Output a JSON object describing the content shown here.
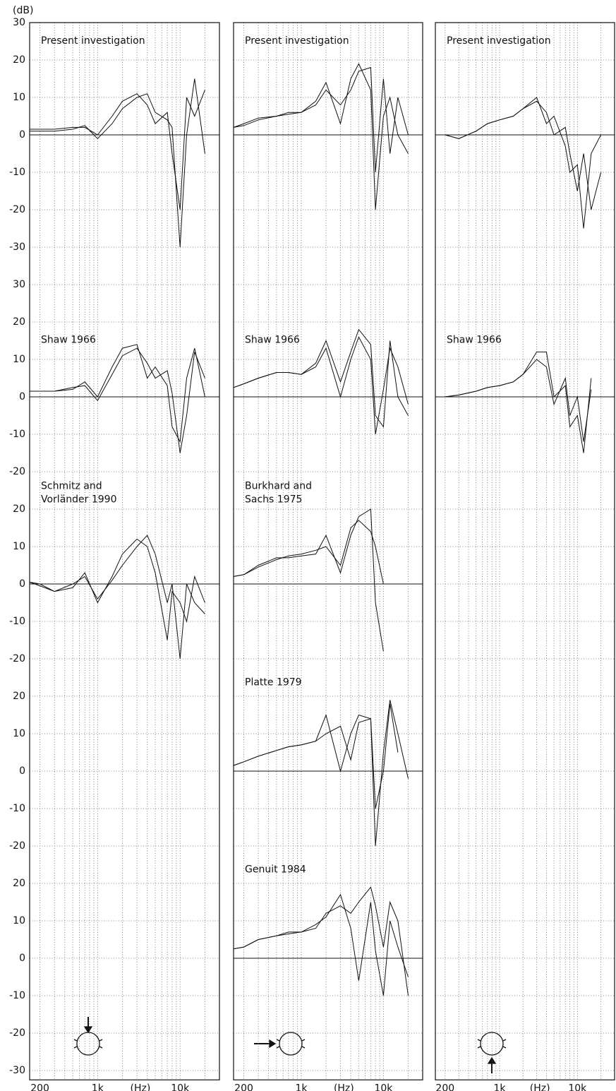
{
  "chart_data": {
    "type": "line",
    "y_label": "(dB)",
    "x_label": "(Hz)",
    "xlim": [
      150,
      30000
    ],
    "xticks": [
      200,
      {
        "value": 1000,
        "label": "1k"
      },
      {
        "value": 10000,
        "label": "10k"
      }
    ],
    "xgrid": [
      200,
      300,
      400,
      500,
      600,
      700,
      800,
      900,
      1000,
      2000,
      3000,
      4000,
      5000,
      6000,
      7000,
      8000,
      9000,
      10000,
      20000
    ],
    "grid": true,
    "color": "#111111",
    "x": [
      150,
      200,
      300,
      500,
      700,
      1000,
      1500,
      2000,
      3000,
      4000,
      5000,
      7000,
      8000,
      10000,
      12000,
      15000,
      20000
    ],
    "rows": [
      {
        "ylim": [
          -35,
          30
        ],
        "yticks": [
          30,
          20,
          10,
          0,
          -10,
          -20,
          -30
        ],
        "cells": [
          {
            "title": "Present investigation",
            "series": [
              {
                "values": [
                  1.5,
                  1.5,
                  1.5,
                  2,
                  2,
                  0,
                  5,
                  9,
                  11,
                  8,
                  3,
                  6,
                  -5,
                  -20,
                  10,
                  5,
                  12
                ]
              },
              {
                "values": [
                  1,
                  1,
                  1,
                  1.5,
                  2.5,
                  -1,
                  3,
                  7,
                  10,
                  11,
                  6,
                  4,
                  2,
                  -30,
                  0,
                  15,
                  -5
                ]
              }
            ]
          },
          {
            "title": "Present investigation",
            "series": [
              {
                "values": [
                  2,
                  3,
                  4.5,
                  5,
                  6,
                  6,
                  9,
                  14,
                  3,
                  15,
                  19,
                  12,
                  -20,
                  5,
                  10,
                  0,
                  -5
                ]
              },
              {
                "values": [
                  2,
                  2.5,
                  4,
                  5,
                  5.5,
                  6,
                  8,
                  12,
                  8,
                  12,
                  17,
                  18,
                  -10,
                  15,
                  -5,
                  10,
                  0
                ]
              }
            ]
          },
          {
            "title": "Present investigation",
            "series": [
              {
                "values": [
                  0,
                  0,
                  -1,
                  1,
                  3,
                  4,
                  5,
                  7,
                  9,
                  6,
                  0,
                  2,
                  -5,
                  -15,
                  -5,
                  -20,
                  -10
                ]
              },
              {
                "values": [
                  0,
                  0,
                  -1,
                  1,
                  3,
                  4,
                  5,
                  7,
                  10,
                  3,
                  5,
                  -3,
                  -10,
                  -8,
                  -25,
                  -5,
                  0
                ]
              }
            ]
          }
        ]
      },
      {
        "ylim": [
          -25,
          35
        ],
        "yticks": [
          30,
          20,
          10,
          0,
          -10,
          -20
        ],
        "cells": [
          {
            "title": "Shaw 1966",
            "series": [
              {
                "values": [
                  1.5,
                  1.5,
                  1.5,
                  2,
                  4,
                  0,
                  8,
                  13,
                  14,
                  5,
                  8,
                  3,
                  -8,
                  -12,
                  5,
                  13,
                  0
                ]
              },
              {
                "values": [
                  1.5,
                  1.5,
                  1.5,
                  2.5,
                  3,
                  -1,
                  6,
                  11,
                  13,
                  9,
                  5,
                  7,
                  1,
                  -15,
                  -5,
                  12,
                  5
                ]
              }
            ]
          },
          {
            "title": "Shaw 1966",
            "series": [
              {
                "values": [
                  2.5,
                  3.5,
                  5,
                  6.5,
                  6.5,
                  6,
                  8,
                  13,
                  0,
                  10,
                  16,
                  10,
                  -10,
                  2,
                  13,
                  8,
                  -2
                ]
              },
              {
                "values": [
                  2.5,
                  3.5,
                  5,
                  6.5,
                  6.5,
                  6,
                  9,
                  15,
                  4,
                  12,
                  18,
                  14,
                  -5,
                  -8,
                  15,
                  0,
                  -5
                ]
              }
            ]
          },
          {
            "title": "Shaw 1966",
            "series": [
              {
                "values": [
                  0,
                  0,
                  0.5,
                  1.5,
                  2.5,
                  3,
                  4,
                  6,
                  10,
                  8,
                  -2,
                  5,
                  -5,
                  0,
                  -12,
                  2,
                  null
                ]
              },
              {
                "values": [
                  0,
                  0,
                  0.5,
                  1.5,
                  2.5,
                  3,
                  4,
                  6,
                  12,
                  12,
                  0,
                  3,
                  -8,
                  -5,
                  -15,
                  5,
                  null
                ]
              }
            ]
          }
        ]
      },
      {
        "ylim": [
          -25,
          25
        ],
        "yticks": [
          20,
          10,
          0,
          -10,
          -20
        ],
        "cells": [
          {
            "title": [
              "Schmitz and",
              "Vorländer 1990"
            ],
            "series": [
              {
                "values": [
                  0.5,
                  0,
                  -2,
                  -1,
                  3,
                  -5,
                  2,
                  8,
                  12,
                  10,
                  3,
                  -15,
                  -2,
                  -5,
                  -10,
                  2,
                  -5
                ]
              },
              {
                "values": [
                  0.5,
                  -0.5,
                  -2,
                  0,
                  2,
                  -4,
                  1,
                  5,
                  10,
                  13,
                  8,
                  -5,
                  0,
                  -20,
                  0,
                  -5,
                  -8
                ]
              }
            ]
          },
          {
            "title": [
              "Burkhard and",
              "Sachs 1975"
            ],
            "series": [
              {
                "values": [
                  2,
                  2.5,
                  5,
                  7,
                  7,
                  7.5,
                  8,
                  13,
                  3,
                  13,
                  18,
                  20,
                  -5,
                  -18,
                  null,
                  null,
                  null
                ]
              },
              {
                "values": [
                  2,
                  2.5,
                  4.5,
                  6.5,
                  7.5,
                  8,
                  9,
                  10,
                  5,
                  15,
                  17,
                  14,
                  10,
                  0,
                  null,
                  null,
                  null
                ]
              }
            ]
          },
          null
        ]
      },
      {
        "ylim": [
          -25,
          25
        ],
        "yticks": [
          20,
          10,
          0,
          -10,
          -20
        ],
        "cells": [
          null,
          {
            "title": "Platte 1979",
            "series": [
              {
                "values": [
                  1.5,
                  2.5,
                  4,
                  5.5,
                  6.5,
                  7,
                  8,
                  15,
                  0,
                  10,
                  15,
                  14,
                  -10,
                  0,
                  18,
                  5,
                  null
                ]
              },
              {
                "values": [
                  1.5,
                  2.5,
                  4,
                  5.5,
                  6.5,
                  7,
                  8,
                  10,
                  12,
                  3,
                  13,
                  14,
                  -20,
                  5,
                  19,
                  10,
                  -2
                ]
              }
            ]
          },
          null
        ]
      },
      {
        "ylim": [
          -32.5,
          25
        ],
        "yticks": [
          20,
          10,
          0,
          -10,
          -20,
          -30
        ],
        "cells": [
          null,
          {
            "title": "Genuit 1984",
            "series": [
              {
                "values": [
                  2.5,
                  3,
                  5,
                  6,
                  7,
                  7,
                  9,
                  11,
                  17,
                  8,
                  -6,
                  15,
                  2,
                  -10,
                  10,
                  3,
                  -5
                ]
              },
              {
                "values": [
                  2.5,
                  3,
                  5,
                  6,
                  6.5,
                  7,
                  8,
                  12,
                  14,
                  12,
                  15,
                  19,
                  14,
                  3,
                  15,
                  10,
                  -10
                ]
              }
            ]
          },
          null
        ]
      }
    ]
  }
}
